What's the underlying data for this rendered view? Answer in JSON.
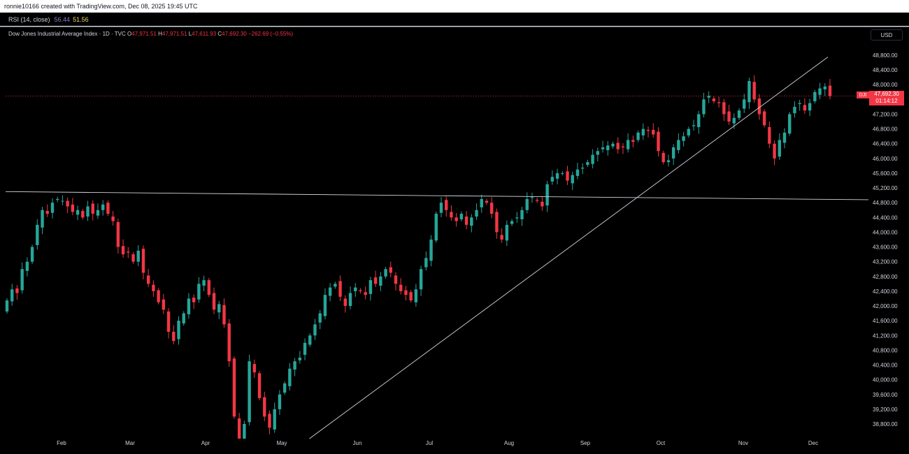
{
  "header": {
    "credit": "ronnie10166 created with TradingView.com, Dec 08, 2025 19:45 UTC"
  },
  "rsi": {
    "label": "RSI (14, close)",
    "value1": "56.44",
    "value2": "51.56"
  },
  "legend": {
    "symbol": "Dow Jones Industrial Average Index · 1D · TVC",
    "o_label": "O",
    "o_value": "47,971.51",
    "h_label": "H",
    "h_value": "47,971.51",
    "l_label": "L",
    "l_value": "47,611.93",
    "c_label": "C",
    "c_value": "47,692.30",
    "change": "−262.69 (−0.55%)"
  },
  "currency": "USD",
  "price_tag": {
    "symbol": "DJI",
    "price": "47,692.30",
    "countdown": "01:14:12",
    "color": "#f23645"
  },
  "colors": {
    "up": "#26a69a",
    "down": "#f23645",
    "background": "#000000"
  },
  "chart_data": {
    "type": "candlestick",
    "y_ticks": [
      "48,800.00",
      "48,400.00",
      "48,000.00",
      "47,600.00",
      "47,200.00",
      "46,800.00",
      "46,400.00",
      "46,000.00",
      "45,600.00",
      "45,200.00",
      "44,800.00",
      "44,400.00",
      "44,000.00",
      "43,600.00",
      "43,200.00",
      "42,800.00",
      "42,400.00",
      "42,000.00",
      "41,600.00",
      "41,200.00",
      "40,800.00",
      "40,400.00",
      "40,000.00",
      "39,600.00",
      "39,200.00",
      "38,800.00"
    ],
    "x_ticks": [
      "Feb",
      "Mar",
      "Apr",
      "May",
      "Jun",
      "Jul",
      "Aug",
      "Sep",
      "Oct",
      "Nov",
      "Dec"
    ],
    "last_price": 47692.3,
    "ylim": [
      38400,
      49200
    ],
    "close_path": [
      42150,
      42450,
      42350,
      43000,
      43200,
      43600,
      44200,
      44600,
      44500,
      44800,
      44900,
      44850,
      44700,
      44550,
      44600,
      44400,
      44700,
      44500,
      44600,
      44750,
      44500,
      44300,
      43600,
      43400,
      43450,
      43200,
      43500,
      42900,
      42600,
      42400,
      42100,
      41900,
      41300,
      41050,
      41600,
      41800,
      42200,
      42100,
      42600,
      42700,
      42300,
      41900,
      42050,
      41500,
      40500,
      39000,
      37700,
      38800,
      40500,
      40200,
      39500,
      39000,
      38700,
      39200,
      39600,
      39900,
      40300,
      40500,
      40600,
      41000,
      41200,
      41500,
      41800,
      42300,
      42500,
      42600,
      42250,
      42000,
      42350,
      42500,
      42400,
      42300,
      42700,
      42600,
      42800,
      43000,
      42900,
      42600,
      42400,
      42300,
      42150,
      42450,
      43000,
      43300,
      43800,
      44500,
      44800,
      44600,
      44400,
      44300,
      44500,
      44200,
      44400,
      44600,
      44900,
      44800,
      44500,
      44000,
      43800,
      44200,
      44300,
      44400,
      44600,
      44900,
      44950,
      44850,
      44700,
      45300,
      45500,
      45600,
      45600,
      45400,
      45550,
      45700,
      45750,
      45900,
      46100,
      46200,
      46300,
      46350,
      46400,
      46250,
      46300,
      46500,
      46450,
      46700,
      46800,
      46750,
      46650,
      46200,
      45900,
      45950,
      46300,
      46500,
      46600,
      46800,
      46900,
      47200,
      47600,
      47700,
      47550,
      47500,
      47200,
      47000,
      47100,
      47300,
      47600,
      48100,
      47600,
      47200,
      46900,
      46400,
      46000,
      46500,
      46700,
      47200,
      47400,
      47500,
      47300,
      47500,
      47800,
      47900,
      47950,
      47692
    ],
    "trendlines": [
      {
        "name": "horizontal",
        "p1": [
          0,
          45100
        ],
        "p2": [
          1,
          44880
        ]
      },
      {
        "name": "rising",
        "p1": [
          0.352,
          38400
        ],
        "p2": [
          0.953,
          48750
        ]
      }
    ]
  }
}
